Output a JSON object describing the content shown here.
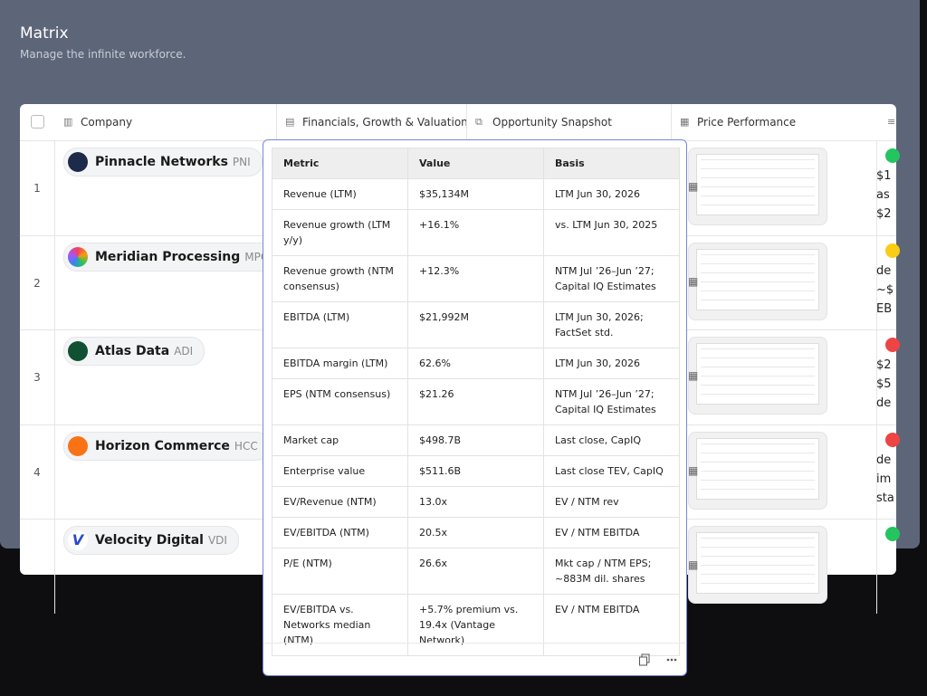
{
  "header": {
    "title": "Matrix",
    "subtitle": "Manage the infinite workforce."
  },
  "columns": [
    "Company",
    "Financials, Growth & Valuation",
    "Opportunity Snapshot",
    "Price Performance"
  ],
  "rows": [
    {
      "number": "1",
      "company": "Pinnacle Networks",
      "ticker": "PNI",
      "status": "#22c55e",
      "snippet": [
        "$1",
        "as",
        "$2"
      ]
    },
    {
      "number": "2",
      "company": "Meridian Processing",
      "ticker": "MPC",
      "status": "#facc15",
      "snippet": [
        "de",
        "~$",
        "EB"
      ]
    },
    {
      "number": "3",
      "company": "Atlas Data",
      "ticker": "ADI",
      "status": "#ef4444",
      "snippet": [
        "$2",
        "$5",
        "de"
      ]
    },
    {
      "number": "4",
      "company": "Horizon Commerce",
      "ticker": "HCC",
      "status": "#ef4444",
      "snippet": [
        "de",
        "im",
        "sta"
      ]
    },
    {
      "company": "Velocity Digital",
      "ticker": "VDI",
      "status": "#22c55e",
      "snippet": []
    }
  ],
  "popup": {
    "headers": [
      "Metric",
      "Value",
      "Basis"
    ],
    "rows": [
      [
        "Revenue (LTM)",
        "$35,134M",
        "LTM Jun 30, 2026"
      ],
      [
        "Revenue growth (LTM y/y)",
        "+16.1%",
        "vs. LTM Jun 30, 2025"
      ],
      [
        "Revenue growth (NTM consensus)",
        "+12.3%",
        "NTM Jul ’26–Jun ’27; Capital IQ Estimates"
      ],
      [
        "EBITDA (LTM)",
        "$21,992M",
        "LTM Jun 30, 2026; FactSet std."
      ],
      [
        "EBITDA margin (LTM)",
        "62.6%",
        "LTM Jun 30, 2026"
      ],
      [
        "EPS (NTM consensus)",
        "$21.26",
        "NTM Jul ’26–Jun ’27; Capital IQ Estimates"
      ],
      [
        "Market cap",
        "$498.7B",
        "Last close, CapIQ"
      ],
      [
        "Enterprise value",
        "$511.6B",
        "Last close TEV, CapIQ"
      ],
      [
        "EV/Revenue (NTM)",
        "13.0x",
        "EV / NTM rev"
      ],
      [
        "EV/EBITDA (NTM)",
        "20.5x",
        "EV / NTM EBITDA"
      ],
      [
        "P/E (NTM)",
        "26.6x",
        "Mkt cap / NTM EPS; ~883M dil. shares"
      ],
      [
        "EV/EBITDA vs. Networks median (NTM)",
        "+5.7% premium vs. 19.4x (Vantage Network)",
        "EV / NTM EBITDA"
      ]
    ]
  }
}
